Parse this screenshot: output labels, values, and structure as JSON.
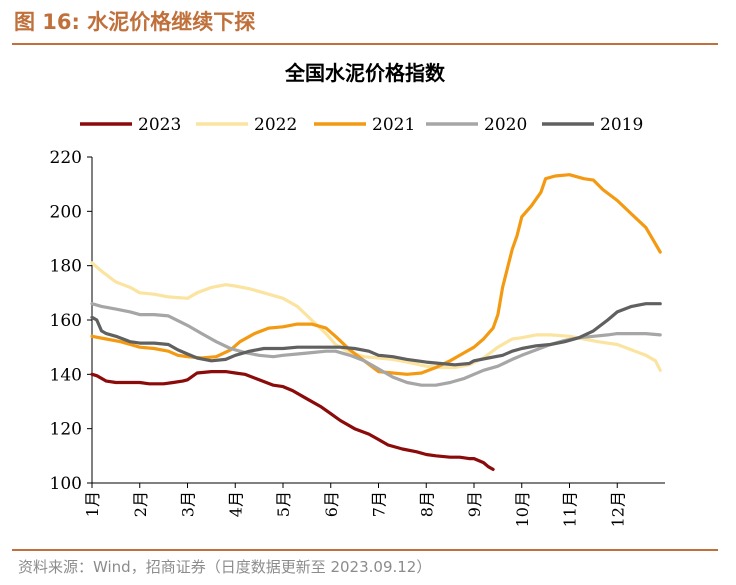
{
  "figure": {
    "label": "图 16:  水泥价格继续下探",
    "source": "资料来源：Wind，招商证券（日度数据更新至 2023.09.12）"
  },
  "chart_data": {
    "type": "line",
    "title": "全国水泥价格指数",
    "xlabel": "",
    "ylabel": "",
    "ylim": [
      100,
      220
    ],
    "yticks": [
      100,
      120,
      140,
      160,
      180,
      200,
      220
    ],
    "xlim": [
      1,
      13
    ],
    "xticks": [
      1,
      2,
      3,
      4,
      5,
      6,
      7,
      8,
      9,
      10,
      11,
      12
    ],
    "xtick_labels": [
      "1月",
      "2月",
      "3月",
      "4月",
      "5月",
      "6月",
      "7月",
      "8月",
      "9月",
      "10月",
      "11月",
      "12月"
    ],
    "grid": false,
    "legend": "top",
    "series": [
      {
        "name": "2023",
        "color": "#8b0a0a",
        "x": [
          1.0,
          1.1,
          1.3,
          1.5,
          1.8,
          2.0,
          2.2,
          2.5,
          2.7,
          2.9,
          3.0,
          3.2,
          3.5,
          3.8,
          4.0,
          4.2,
          4.5,
          4.8,
          5.0,
          5.2,
          5.5,
          5.8,
          6.0,
          6.2,
          6.5,
          6.8,
          7.0,
          7.2,
          7.5,
          7.8,
          8.0,
          8.2,
          8.5,
          8.7,
          8.9,
          9.0,
          9.2,
          9.3,
          9.4
        ],
        "y": [
          140,
          139.5,
          137.5,
          137,
          137,
          137,
          136.5,
          136.5,
          137,
          137.5,
          138,
          140.5,
          141,
          141,
          140.5,
          140,
          138,
          136,
          135.5,
          134,
          131,
          128,
          125.5,
          123,
          120,
          118,
          116,
          114,
          112.5,
          111.5,
          110.5,
          110,
          109.5,
          109.5,
          109,
          109,
          107.5,
          106,
          105
        ]
      },
      {
        "name": "2022",
        "color": "#fbe4a0",
        "x": [
          1.0,
          1.2,
          1.5,
          1.8,
          2.0,
          2.3,
          2.6,
          3.0,
          3.2,
          3.5,
          3.8,
          4.0,
          4.3,
          4.6,
          5.0,
          5.3,
          5.6,
          5.9,
          6.1,
          6.4,
          6.7,
          7.0,
          7.3,
          7.6,
          8.0,
          8.3,
          8.6,
          8.9,
          9.2,
          9.5,
          9.8,
          10.0,
          10.3,
          10.6,
          11.0,
          11.3,
          11.6,
          12.0,
          12.3,
          12.6,
          12.8,
          12.9
        ],
        "y": [
          181,
          178,
          174,
          172,
          170,
          169.5,
          168.5,
          168,
          170,
          172,
          173,
          172.5,
          171.5,
          170,
          168,
          165,
          160,
          155,
          151,
          148,
          146.5,
          146,
          145.5,
          144.5,
          143,
          142.5,
          142.5,
          143.5,
          146,
          150,
          153,
          153.5,
          154.5,
          154.5,
          154,
          153,
          152,
          151,
          149,
          147,
          145,
          141.5
        ]
      },
      {
        "name": "2021",
        "color": "#f39a12",
        "x": [
          1.0,
          1.3,
          1.6,
          2.0,
          2.3,
          2.6,
          2.8,
          3.0,
          3.3,
          3.6,
          3.9,
          4.1,
          4.4,
          4.7,
          5.0,
          5.3,
          5.6,
          5.9,
          6.1,
          6.4,
          6.7,
          7.0,
          7.3,
          7.6,
          7.9,
          8.2,
          8.5,
          8.8,
          9.0,
          9.2,
          9.4,
          9.5,
          9.6,
          9.7,
          9.8,
          9.9,
          10.0,
          10.2,
          10.4,
          10.5,
          10.7,
          11.0,
          11.3,
          11.5,
          11.7,
          12.0,
          12.3,
          12.6,
          12.8,
          12.9
        ],
        "y": [
          154,
          153,
          152,
          150,
          149.5,
          148.5,
          147,
          146.5,
          146,
          146.5,
          149,
          152,
          155,
          157,
          157.5,
          158.5,
          158.5,
          157,
          154,
          149,
          145,
          141,
          140.5,
          140,
          140.5,
          142.5,
          145,
          148,
          150,
          153,
          157,
          162,
          172,
          179,
          186,
          191,
          198,
          202,
          207,
          212,
          213,
          213.5,
          212,
          211.5,
          208,
          204,
          199,
          194,
          188,
          185
        ]
      },
      {
        "name": "2020",
        "color": "#a6a6a6",
        "x": [
          1.0,
          1.2,
          1.5,
          1.8,
          2.0,
          2.3,
          2.6,
          3.0,
          3.3,
          3.6,
          3.9,
          4.2,
          4.5,
          4.8,
          5.0,
          5.3,
          5.6,
          5.9,
          6.1,
          6.4,
          6.7,
          7.0,
          7.3,
          7.6,
          7.9,
          8.2,
          8.5,
          8.8,
          9.0,
          9.2,
          9.5,
          9.8,
          10.0,
          10.3,
          10.6,
          10.9,
          11.2,
          11.5,
          11.8,
          12.0,
          12.3,
          12.6,
          12.9
        ],
        "y": [
          166,
          165,
          164,
          163,
          162,
          162,
          161.5,
          158,
          155,
          152,
          149.5,
          148,
          147,
          146.5,
          147,
          147.5,
          148,
          148.5,
          148.5,
          147,
          145,
          142,
          139,
          137,
          136,
          136,
          137,
          138.5,
          140,
          141.5,
          143,
          145.5,
          147,
          149,
          151,
          152.5,
          153.5,
          154,
          154.5,
          155,
          155,
          155,
          154.5
        ]
      },
      {
        "name": "2019",
        "color": "#606060",
        "x": [
          1.0,
          1.1,
          1.2,
          1.3,
          1.5,
          1.8,
          2.0,
          2.3,
          2.6,
          2.8,
          3.0,
          3.2,
          3.5,
          3.8,
          4.0,
          4.3,
          4.6,
          5.0,
          5.3,
          5.6,
          5.9,
          6.2,
          6.5,
          6.8,
          7.0,
          7.3,
          7.6,
          8.0,
          8.3,
          8.6,
          8.9,
          9.0,
          9.3,
          9.6,
          9.8,
          10.0,
          10.3,
          10.6,
          10.9,
          11.2,
          11.5,
          11.8,
          12.0,
          12.3,
          12.6,
          12.9
        ],
        "y": [
          161,
          160,
          156,
          155,
          154,
          152,
          151.5,
          151.5,
          151,
          149,
          147.5,
          146,
          145,
          145.5,
          147,
          148.5,
          149.5,
          149.5,
          150,
          150,
          150,
          150,
          149.5,
          148.5,
          147,
          146.5,
          145.5,
          144.5,
          144,
          143.5,
          144,
          145,
          146,
          147,
          148.5,
          149.5,
          150.5,
          151,
          152,
          153.5,
          156,
          160,
          163,
          165,
          166,
          166
        ]
      }
    ]
  }
}
